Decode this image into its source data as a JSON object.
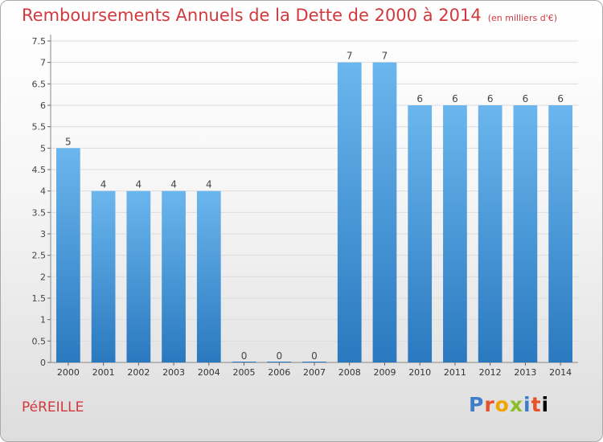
{
  "header": {
    "title": "Remboursements Annuels de la Dette de 2000 à 2014",
    "unit": "(en milliers d'€)"
  },
  "footer": {
    "town": "PéREILLE",
    "brand_letters": [
      "P",
      "r",
      "o",
      "x",
      "i",
      "t",
      "i"
    ]
  },
  "colors": {
    "bar_top": "#6bb6ee",
    "bar_bottom": "#2a79bf",
    "title": "#d0393e",
    "axis": "#555555"
  },
  "chart_data": {
    "type": "bar",
    "title": "Remboursements Annuels de la Dette de 2000 à 2014",
    "subtitle": "(en milliers d'€)",
    "categories": [
      "2000",
      "2001",
      "2002",
      "2003",
      "2004",
      "2005",
      "2006",
      "2007",
      "2008",
      "2009",
      "2010",
      "2011",
      "2012",
      "2013",
      "2014"
    ],
    "values": [
      5,
      4,
      4,
      4,
      4,
      0,
      0,
      0,
      7,
      7,
      6,
      6,
      6,
      6,
      6
    ],
    "data_labels": [
      "5",
      "4",
      "4",
      "4",
      "4",
      "0",
      "0",
      "0",
      "7",
      "7",
      "6",
      "6",
      "6",
      "6",
      "6"
    ],
    "ylim": [
      0,
      7.5
    ],
    "yticks": [
      0,
      0.5,
      1,
      1.5,
      2,
      2.5,
      3,
      3.5,
      4,
      4.5,
      5,
      5.5,
      6,
      6.5,
      7,
      7.5
    ],
    "ytick_labels": [
      "0",
      "0.5",
      "1",
      "1.5",
      "2",
      "2.5",
      "3",
      "3.5",
      "4",
      "4.5",
      "5",
      "5.5",
      "6",
      "6.5",
      "7",
      "7.5"
    ],
    "grid": true,
    "xlabel": "",
    "ylabel": ""
  }
}
